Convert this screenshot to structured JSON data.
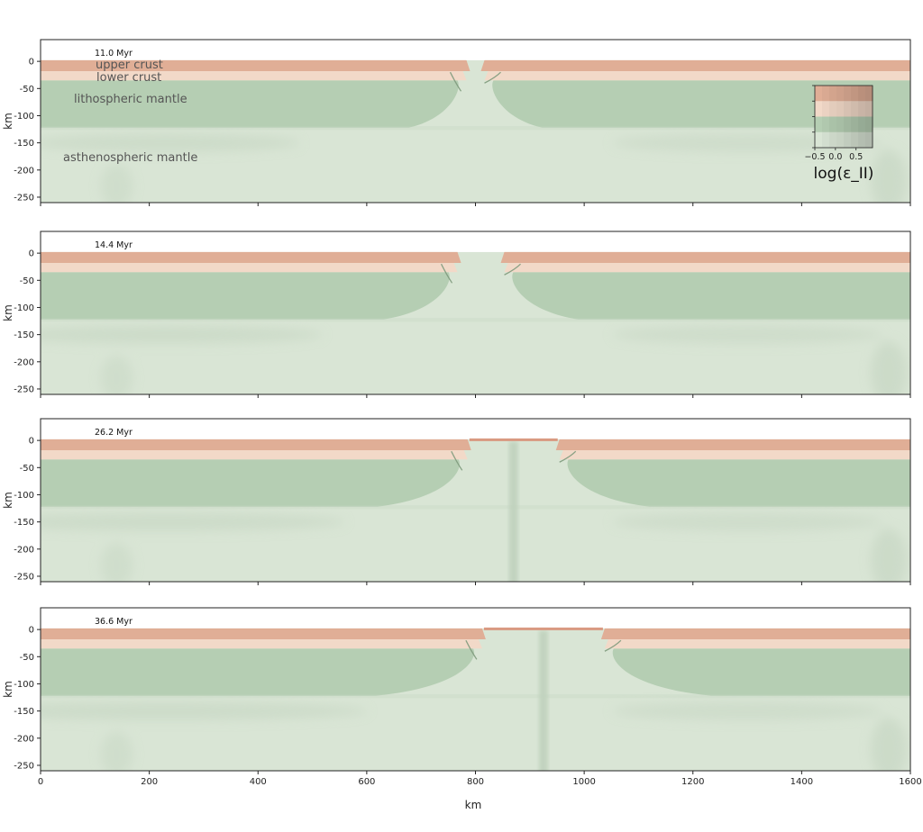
{
  "chart_data": [
    {
      "type": "heatmap",
      "panel_label": "11.0 Myr",
      "time_myr": 11.0,
      "ylabel": "km",
      "xlim": [
        0,
        1600
      ],
      "ylim": [
        -260,
        40
      ],
      "x_ticks": [
        0,
        200,
        400,
        600,
        800,
        1000,
        1200,
        1400,
        1600
      ],
      "y_ticks": [
        0,
        -50,
        -100,
        -150,
        -200,
        -250
      ],
      "layer_labels": [
        "upper crust",
        "lower crust",
        "lithospheric mantle",
        "asthenospheric mantle"
      ],
      "rift_center_km": 800,
      "lithosphere_base_km": -122
    },
    {
      "type": "heatmap",
      "panel_label": "14.4 Myr",
      "time_myr": 14.4,
      "ylabel": "km",
      "xlim": [
        0,
        1600
      ],
      "ylim": [
        -260,
        40
      ],
      "x_ticks": [
        0,
        200,
        400,
        600,
        800,
        1000,
        1200,
        1400,
        1600
      ],
      "y_ticks": [
        0,
        -50,
        -100,
        -150,
        -200,
        -250
      ],
      "rift_center_km": 810,
      "lithosphere_base_km": -122
    },
    {
      "type": "heatmap",
      "panel_label": "26.2 Myr",
      "time_myr": 26.2,
      "ylabel": "km",
      "xlim": [
        0,
        1600
      ],
      "ylim": [
        -260,
        40
      ],
      "x_ticks": [
        0,
        200,
        400,
        600,
        800,
        1000,
        1200,
        1400,
        1600
      ],
      "y_ticks": [
        0,
        -50,
        -100,
        -150,
        -200,
        -250
      ],
      "rift_center_km": 870,
      "lithosphere_base_km": -122
    },
    {
      "type": "heatmap",
      "panel_label": "36.6 Myr",
      "time_myr": 36.6,
      "ylabel": "km",
      "xlabel": "km",
      "xlim": [
        0,
        1600
      ],
      "ylim": [
        -260,
        40
      ],
      "x_ticks": [
        0,
        200,
        400,
        600,
        800,
        1000,
        1200,
        1400,
        1600
      ],
      "y_ticks": [
        0,
        -50,
        -100,
        -150,
        -200,
        -250
      ],
      "rift_center_km": 925,
      "lithosphere_base_km": -122
    }
  ],
  "colorbar": {
    "title": "log(ε_II)",
    "ticks": [
      -0.5,
      0.0,
      0.5
    ],
    "tick_labels": [
      "−0.5",
      "0.0",
      "0.5"
    ],
    "range": [
      -0.5,
      0.9
    ]
  },
  "colors": {
    "upper_crust": "#e0ae96",
    "lower_crust": "#f2d9c8",
    "lithospheric_mantle": "#b5ceb3",
    "asthenospheric_mantle": "#d9e5d5",
    "shear_zone": "#7e9a7c"
  }
}
